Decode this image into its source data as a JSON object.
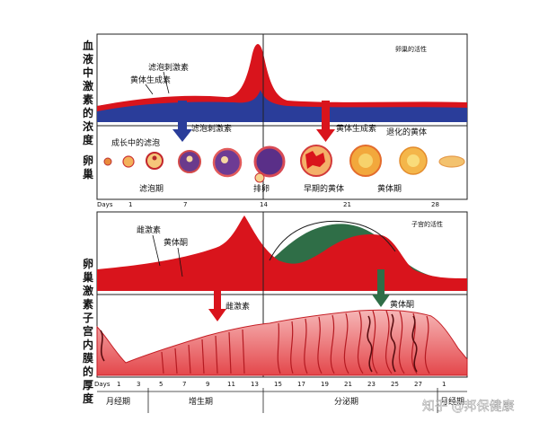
{
  "left_labels": {
    "blood_concentration": "血液中激素的浓度",
    "ovary": "卵巢",
    "ovarian_hormones": "卵巢激素",
    "endometrium_thickness": "子宫内膜的厚度"
  },
  "panel1": {
    "title": "卵巢的活性",
    "luteinizing_hormone": "黄体生成素",
    "fsh": "滤泡刺激素"
  },
  "panel2": {
    "fsh_arrow": "滤泡刺激素",
    "lh_arrow": "黄体生成素",
    "growing_follicle": "成长中的滤泡",
    "degenerating_corpus_luteum": "退化的黄体",
    "follicular_phase": "滤泡期",
    "ovulation": "排卵",
    "early_corpus_luteum": "早期的黄体",
    "corpus_luteum": "黄体期",
    "days_label": "Days",
    "days": [
      "1",
      "7",
      "14",
      "21",
      "28"
    ]
  },
  "panel3": {
    "title": "子宫的活性",
    "estrogen": "雌激素",
    "progesterone": "黄体酮",
    "estrogen_arrow": "雌激素",
    "progesterone_arrow": "黄体酮"
  },
  "panel4": {
    "days_label": "Days",
    "days": [
      "1",
      "3",
      "5",
      "7",
      "9",
      "11",
      "13",
      "15",
      "17",
      "19",
      "21",
      "23",
      "25",
      "27",
      "1"
    ],
    "phases": [
      "月经期",
      "增生期",
      "分泌期",
      "月经期"
    ]
  },
  "watermark": "知乎 @邦保健康",
  "colors": {
    "lh_red": "#d9141c",
    "fsh_blue": "#2a3d9a",
    "progesterone_green": "#2f6e47",
    "endometrium_pink": "#f3a3a3"
  }
}
